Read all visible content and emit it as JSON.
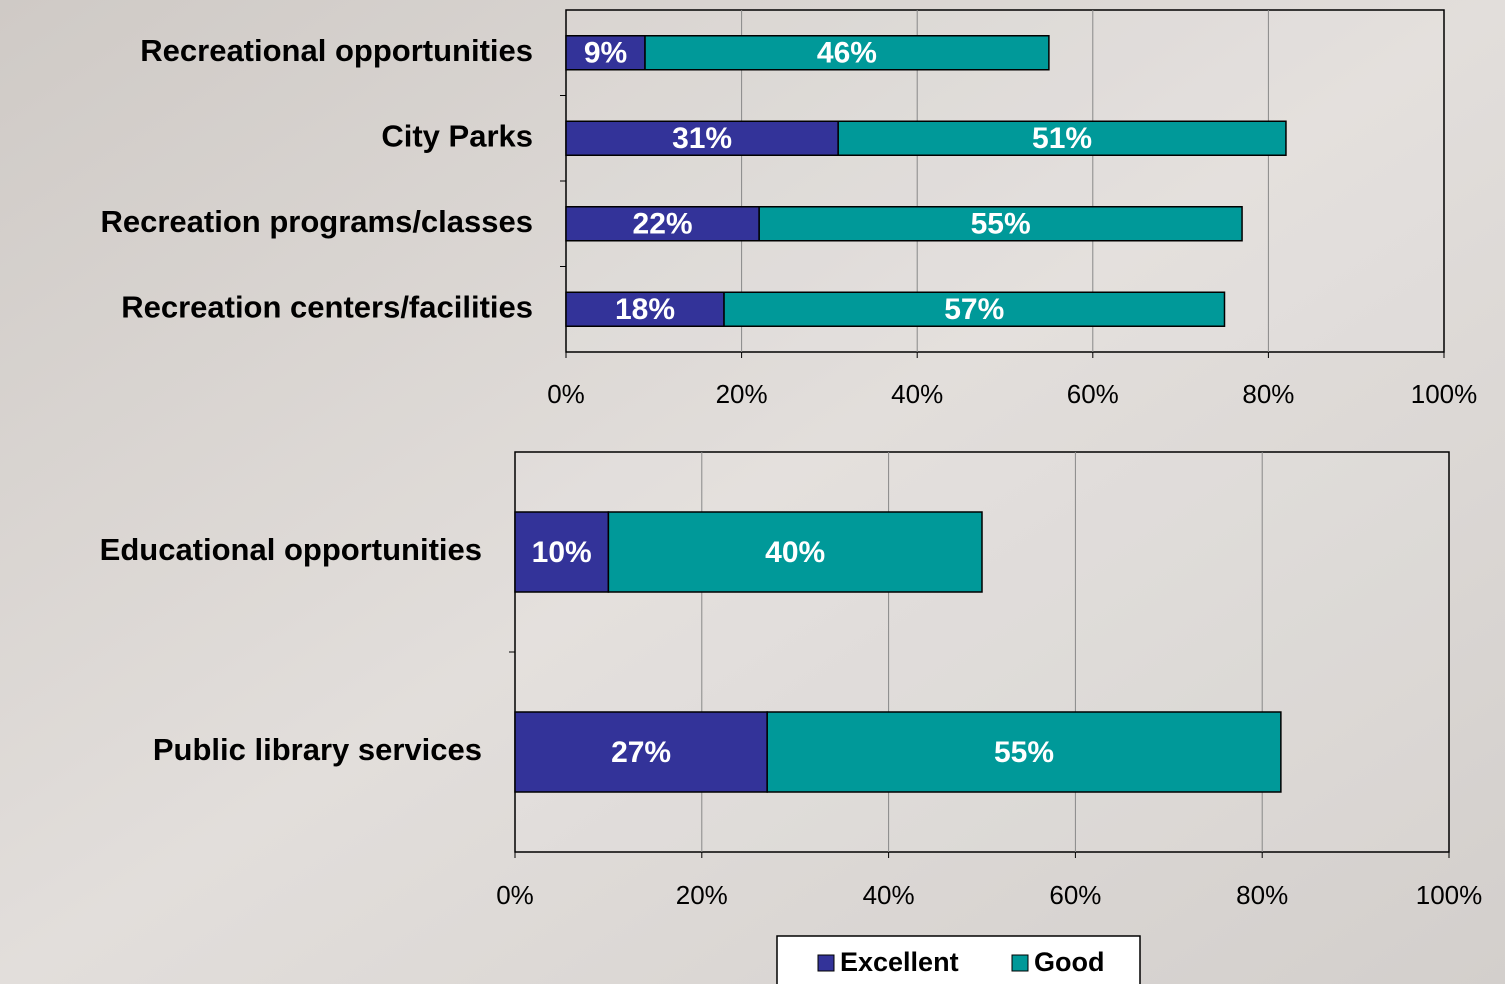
{
  "chart_data": [
    {
      "type": "stacked-bar-horizontal",
      "categories": [
        "Recreational opportunities",
        "City Parks",
        "Recreation programs/classes",
        "Recreation centers/facilities"
      ],
      "series": [
        {
          "name": "Excellent",
          "color": "#333399",
          "values": [
            9,
            31,
            22,
            18
          ],
          "value_labels": [
            "9%",
            "31%",
            "22%",
            "18%"
          ]
        },
        {
          "name": "Good",
          "color": "#009999",
          "values": [
            46,
            51,
            55,
            57
          ],
          "value_labels": [
            "46%",
            "51%",
            "55%",
            "57%"
          ]
        }
      ],
      "xlim": [
        0,
        100
      ],
      "xticks": [
        {
          "value": 0,
          "label": "0%"
        },
        {
          "value": 20,
          "label": "20%"
        },
        {
          "value": 40,
          "label": "40%"
        },
        {
          "value": 60,
          "label": "60%"
        },
        {
          "value": 80,
          "label": "80%"
        },
        {
          "value": 100,
          "label": "100%"
        }
      ],
      "grid": true
    },
    {
      "type": "stacked-bar-horizontal",
      "categories": [
        "Educational opportunities",
        "Public library services"
      ],
      "series": [
        {
          "color": "#333399",
          "values": [
            10,
            27
          ],
          "value_labels": [
            "10%",
            "27%"
          ]
        },
        {
          "color": "#009999",
          "values": [
            40,
            55
          ],
          "value_labels": [
            "40%",
            "55%"
          ]
        }
      ],
      "xlim": [
        0,
        100
      ],
      "xticks": [
        {
          "value": 0,
          "label": "0%"
        },
        {
          "value": 20,
          "label": "20%"
        },
        {
          "value": 40,
          "label": "40%"
        },
        {
          "value": 60,
          "label": "60%"
        },
        {
          "value": 80,
          "label": "80%"
        },
        {
          "value": 100,
          "label": "100%"
        }
      ],
      "grid": true
    }
  ]
}
